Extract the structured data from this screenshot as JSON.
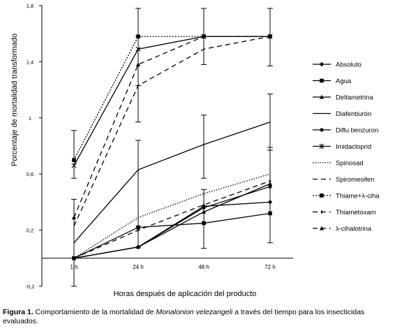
{
  "chart_data": {
    "type": "line",
    "xlabel": "Horas después de aplicación del producto",
    "ylabel": "Porcentaje de mortalidad transformado",
    "categories": [
      "1 h",
      "24 h",
      "48 h",
      "72 h"
    ],
    "y_ticks": [
      "-0,2",
      "0,2",
      "0,6",
      "1",
      "1,4",
      "1,8"
    ],
    "y_tick_values": [
      -0.2,
      0.2,
      0.6,
      1.0,
      1.4,
      1.8
    ],
    "ylim": [
      -0.2,
      1.8
    ],
    "grid": false,
    "legend_position": "right",
    "series": [
      {
        "name": "Absoluto",
        "marker": "diamond",
        "dash": "",
        "values": [
          0.0,
          0.08,
          0.37,
          0.4
        ]
      },
      {
        "name": "Agua",
        "marker": "square",
        "dash": "",
        "values": [
          0.0,
          0.22,
          0.25,
          0.32
        ]
      },
      {
        "name": "Deltametrina",
        "marker": "triangle",
        "dash": "",
        "values": [
          0.0,
          0.08,
          0.33,
          0.53
        ]
      },
      {
        "name": "Diafentiurón",
        "marker": "none",
        "dash": "",
        "values": [
          0.11,
          0.63,
          0.81,
          0.97
        ]
      },
      {
        "name": "Diflu benzuron",
        "marker": "circle",
        "dash": "",
        "values": [
          0.0,
          0.08,
          0.36,
          0.51
        ]
      },
      {
        "name": "Imidacloprid",
        "marker": "star",
        "dash": "",
        "values": [
          0.66,
          1.49,
          1.58,
          1.58
        ]
      },
      {
        "name": "Spinosad",
        "marker": "none",
        "dash": "1.5 2",
        "values": [
          0.0,
          0.29,
          0.46,
          0.6
        ]
      },
      {
        "name": "Spiromesifen",
        "marker": "none",
        "dash": "7 5",
        "values": [
          0.23,
          1.23,
          1.49,
          1.58
        ]
      },
      {
        "name": "Thiame+λ-ciha",
        "marker": "square",
        "dash": "2 2",
        "values": [
          0.7,
          1.58,
          1.58,
          1.58
        ]
      },
      {
        "name": "Thiametoxam",
        "marker": "tick",
        "dash": "7 5",
        "values": [
          0.0,
          0.2,
          0.38,
          0.55
        ]
      },
      {
        "name": "λ-cihalotrina",
        "marker": "triangle",
        "dash": "7 5",
        "values": [
          0.29,
          1.38,
          1.58,
          1.58
        ]
      }
    ],
    "error_bars": [
      {
        "x_index": 0,
        "low": -0.2,
        "high": 0.42
      },
      {
        "x_index": 0,
        "low": 0.57,
        "high": 0.91
      },
      {
        "x_index": 1,
        "low": 1.23,
        "high": 1.78
      },
      {
        "x_index": 1,
        "low": 0.97,
        "high": 1.58
      },
      {
        "x_index": 1,
        "low": 0.08,
        "high": 0.84
      },
      {
        "x_index": 2,
        "low": 1.38,
        "high": 1.78
      },
      {
        "x_index": 2,
        "low": 0.57,
        "high": 1.02
      },
      {
        "x_index": 2,
        "low": 0.07,
        "high": 0.49
      },
      {
        "x_index": 3,
        "low": 1.37,
        "high": 1.78
      },
      {
        "x_index": 3,
        "low": 0.77,
        "high": 1.17
      },
      {
        "x_index": 3,
        "low": 0.11,
        "high": 0.79
      }
    ]
  },
  "caption": {
    "label": "Figura 1.",
    "text_before": " Comportamiento de la mortalidad de ",
    "species": "Monalonion velezangeli",
    "text_after": " a través del tiempo para los insecticidas evaluados."
  }
}
